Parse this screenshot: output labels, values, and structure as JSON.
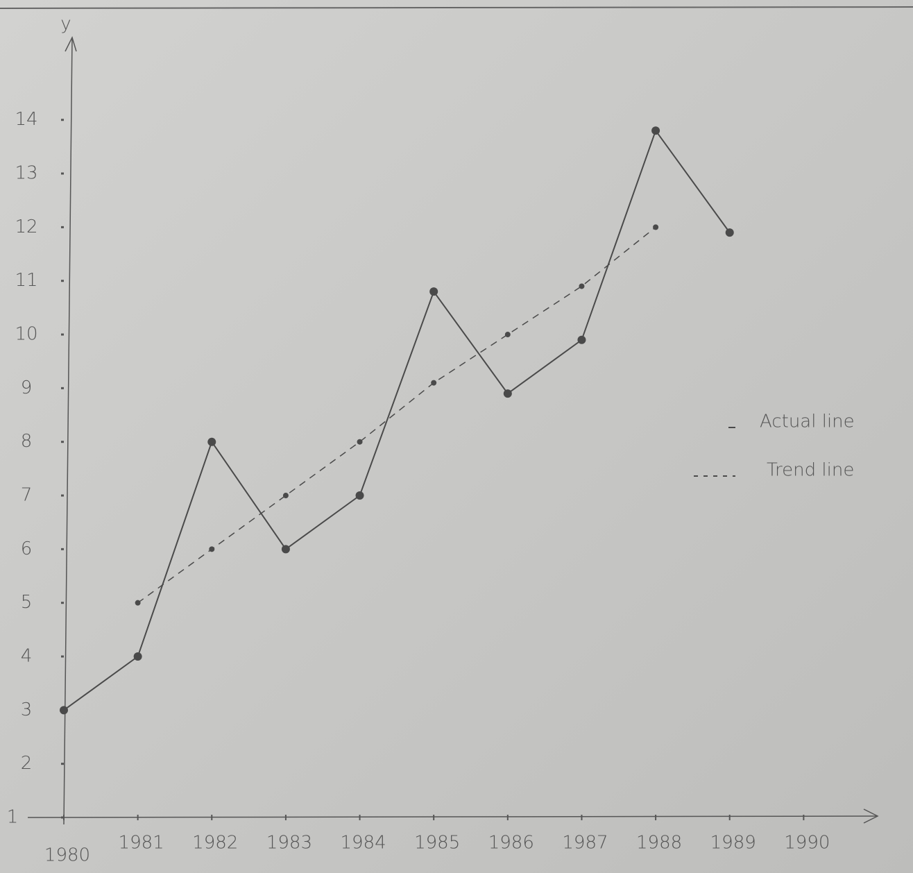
{
  "chart_data": {
    "type": "line",
    "y_label": "y",
    "x": [
      1980,
      1981,
      1982,
      1983,
      1984,
      1985,
      1986,
      1987,
      1988,
      1989
    ],
    "series": [
      {
        "name": "Actual line",
        "color": "#4a4a4a",
        "style": "solid",
        "values": [
          3,
          4,
          8,
          6,
          7,
          10.8,
          8.9,
          9.9,
          13.8,
          11.9
        ]
      },
      {
        "name": "Trend line",
        "color": "#4a4a4a",
        "style": "dashed",
        "values": [
          null,
          5,
          6,
          7,
          8,
          9.1,
          10,
          10.9,
          12,
          null
        ]
      }
    ],
    "xlim": [
      1980,
      1991
    ],
    "xticks": [
      1980,
      1981,
      1982,
      1983,
      1984,
      1985,
      1986,
      1987,
      1988,
      1989,
      1990
    ],
    "ylim": [
      1,
      15.6
    ],
    "yticks": [
      1,
      2,
      3,
      4,
      5,
      6,
      7,
      8,
      9,
      10,
      11,
      12,
      13,
      14
    ],
    "legend": "right"
  }
}
